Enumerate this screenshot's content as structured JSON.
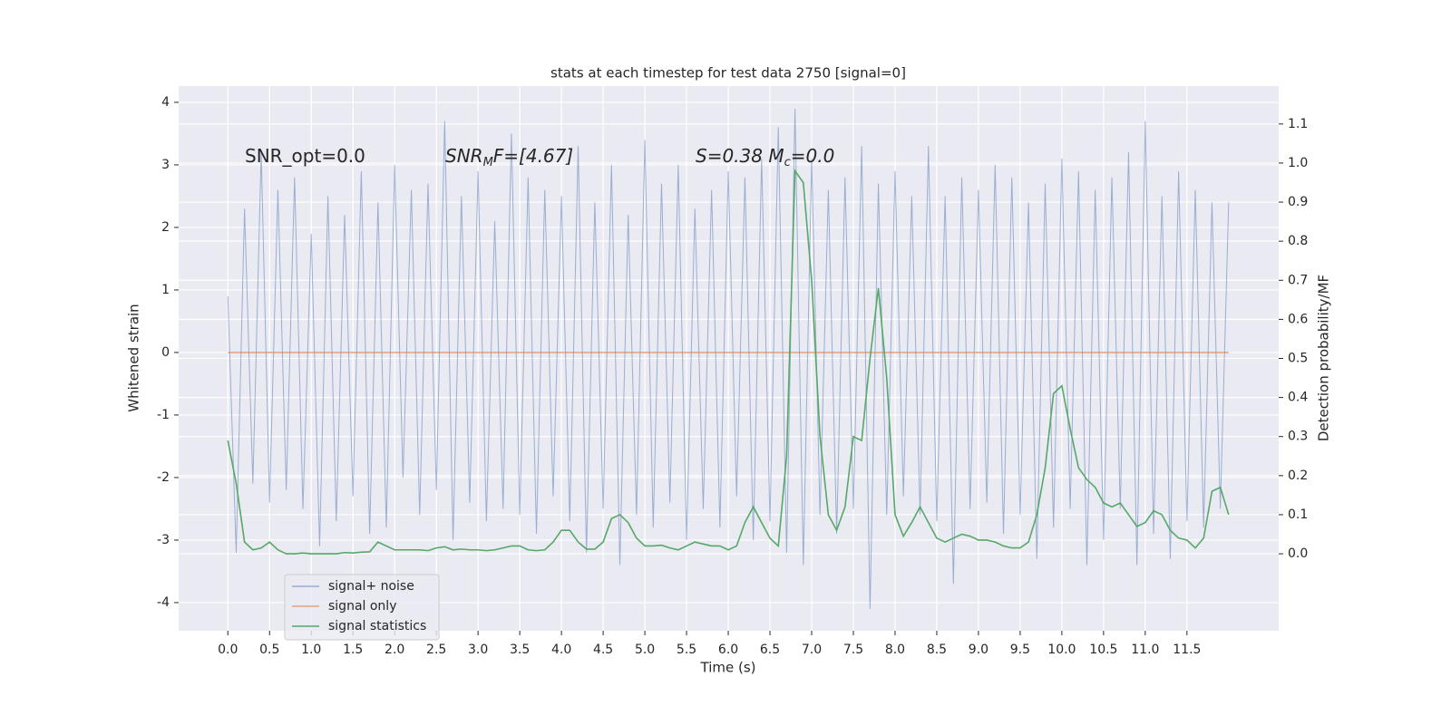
{
  "chart_data": {
    "type": "line",
    "title": "stats at each timestep for test data 2750 [signal=0]",
    "x_label": "Time (s)",
    "y_label": "Whitened strain",
    "y2_label": "Detection probability/MF",
    "x": [
      0,
      0.1,
      0.2,
      0.3,
      0.4,
      0.5,
      0.6,
      0.7,
      0.8,
      0.9,
      1,
      1.1,
      1.2,
      1.3,
      1.4,
      1.5,
      1.6,
      1.7,
      1.8,
      1.9,
      2,
      2.1,
      2.2,
      2.3,
      2.4,
      2.5,
      2.6,
      2.7,
      2.8,
      2.9,
      3,
      3.1,
      3.2,
      3.3,
      3.4,
      3.5,
      3.6,
      3.7,
      3.8,
      3.9,
      4,
      4.1,
      4.2,
      4.3,
      4.4,
      4.5,
      4.6,
      4.7,
      4.8,
      4.9,
      5,
      5.1,
      5.2,
      5.3,
      5.4,
      5.5,
      5.6,
      5.7,
      5.8,
      5.9,
      6,
      6.1,
      6.2,
      6.3,
      6.4,
      6.5,
      6.6,
      6.7,
      6.8,
      6.9,
      7,
      7.1,
      7.2,
      7.3,
      7.4,
      7.5,
      7.6,
      7.7,
      7.8,
      7.9,
      8,
      8.1,
      8.2,
      8.3,
      8.4,
      8.5,
      8.6,
      8.7,
      8.8,
      8.9,
      9,
      9.1,
      9.2,
      9.3,
      9.4,
      9.5,
      9.6,
      9.7,
      9.8,
      9.9,
      10,
      10.1,
      10.2,
      10.3,
      10.4,
      10.5,
      10.6,
      10.7,
      10.8,
      10.9,
      11,
      11.1,
      11.2,
      11.3,
      11.4,
      11.5,
      11.6,
      11.7,
      11.8,
      11.9,
      12
    ],
    "series": [
      {
        "name": "signal+ noise",
        "color": "#4c72b0",
        "opacity": 0.5,
        "values": [
          0.9,
          -3.2,
          2.3,
          -2.1,
          3.2,
          -2.4,
          2.6,
          -2.2,
          2.8,
          -2.5,
          1.9,
          -3.1,
          2.5,
          -2.7,
          2.2,
          -2.3,
          2.9,
          -2.9,
          2.4,
          -2.8,
          3.0,
          -2.0,
          2.6,
          -2.6,
          2.7,
          -2.2,
          3.7,
          -3.0,
          2.5,
          -2.4,
          2.9,
          -2.7,
          2.1,
          -2.5,
          3.5,
          -2.6,
          2.8,
          -2.9,
          2.6,
          -2.3,
          2.5,
          -2.7,
          3.3,
          -3.2,
          2.4,
          -2.5,
          3.0,
          -3.4,
          2.2,
          -2.6,
          3.4,
          -2.8,
          2.7,
          -2.4,
          3.0,
          -3.0,
          2.3,
          -2.5,
          2.6,
          -2.8,
          2.9,
          -2.3,
          2.8,
          -3.0,
          3.1,
          -2.7,
          3.6,
          -3.2,
          3.9,
          -3.4,
          3.1,
          -2.6,
          2.6,
          -2.9,
          2.8,
          -2.5,
          3.3,
          -4.1,
          2.7,
          -2.6,
          2.9,
          -2.3,
          2.5,
          -2.6,
          3.3,
          -2.7,
          2.5,
          -3.7,
          2.8,
          -2.5,
          2.6,
          -2.4,
          3.0,
          -2.9,
          2.8,
          -2.6,
          2.4,
          -3.3,
          2.7,
          -2.8,
          3.1,
          -2.5,
          2.9,
          -3.4,
          2.6,
          -3.0,
          2.8,
          -2.5,
          3.2,
          -3.4,
          3.7,
          -2.9,
          2.5,
          -3.3,
          2.9,
          -2.7,
          2.6,
          -2.8,
          2.4,
          -2.5,
          2.4
        ]
      },
      {
        "name": "signal only",
        "color": "#dd8452",
        "opacity": 0.7,
        "values": [
          0,
          0,
          0,
          0,
          0,
          0,
          0,
          0,
          0,
          0,
          0,
          0,
          0,
          0,
          0,
          0,
          0,
          0,
          0,
          0,
          0,
          0,
          0,
          0,
          0,
          0,
          0,
          0,
          0,
          0,
          0,
          0,
          0,
          0,
          0,
          0,
          0,
          0,
          0,
          0,
          0,
          0,
          0,
          0,
          0,
          0,
          0,
          0,
          0,
          0,
          0,
          0,
          0,
          0,
          0,
          0,
          0,
          0,
          0,
          0,
          0,
          0,
          0,
          0,
          0,
          0,
          0,
          0,
          0,
          0,
          0,
          0,
          0,
          0,
          0,
          0,
          0,
          0,
          0,
          0,
          0,
          0,
          0,
          0,
          0,
          0,
          0,
          0,
          0,
          0,
          0,
          0,
          0,
          0,
          0,
          0,
          0,
          0,
          0,
          0,
          0,
          0,
          0,
          0,
          0,
          0,
          0,
          0,
          0,
          0,
          0,
          0,
          0,
          0,
          0,
          0,
          0,
          0,
          0,
          0,
          0
        ]
      },
      {
        "name": "signal statistics",
        "color": "#55a868",
        "opacity": 1,
        "axis": "y2",
        "values": [
          0.29,
          0.18,
          0.03,
          0.01,
          0.015,
          0.03,
          0.01,
          0.0,
          0.0,
          0.002,
          0.0,
          0.0,
          0.0,
          0.0,
          0.003,
          0.002,
          0.004,
          0.005,
          0.03,
          0.02,
          0.01,
          0.01,
          0.01,
          0.01,
          0.008,
          0.015,
          0.018,
          0.01,
          0.012,
          0.01,
          0.01,
          0.008,
          0.01,
          0.015,
          0.02,
          0.02,
          0.01,
          0.008,
          0.01,
          0.03,
          0.06,
          0.06,
          0.03,
          0.012,
          0.012,
          0.03,
          0.09,
          0.1,
          0.08,
          0.04,
          0.02,
          0.02,
          0.022,
          0.015,
          0.01,
          0.02,
          0.03,
          0.025,
          0.02,
          0.02,
          0.01,
          0.02,
          0.08,
          0.12,
          0.08,
          0.04,
          0.02,
          0.25,
          0.98,
          0.95,
          0.7,
          0.3,
          0.1,
          0.06,
          0.12,
          0.3,
          0.29,
          0.5,
          0.68,
          0.45,
          0.1,
          0.045,
          0.08,
          0.12,
          0.08,
          0.04,
          0.03,
          0.04,
          0.05,
          0.045,
          0.035,
          0.035,
          0.03,
          0.02,
          0.015,
          0.015,
          0.03,
          0.1,
          0.22,
          0.41,
          0.43,
          0.32,
          0.22,
          0.19,
          0.17,
          0.13,
          0.12,
          0.13,
          0.1,
          0.07,
          0.08,
          0.11,
          0.1,
          0.06,
          0.04,
          0.035,
          0.015,
          0.04,
          0.16,
          0.17,
          0.1
        ]
      }
    ],
    "xlim": [
      -0.59,
      12.6
    ],
    "ylim": [
      -4.45,
      4.26
    ],
    "y2lim": [
      -0.197,
      1.197
    ],
    "xticks": [
      {
        "value": 0,
        "label": "0.0"
      },
      0.5,
      {
        "value": 1,
        "label": "1.0"
      },
      1.5,
      {
        "value": 2,
        "label": "2.0"
      },
      2.5,
      {
        "value": 3,
        "label": "3.0"
      },
      3.5,
      {
        "value": 4,
        "label": "4.0"
      },
      4.5,
      {
        "value": 5,
        "label": "5.0"
      },
      5.5,
      {
        "value": 6,
        "label": "6.0"
      },
      6.5,
      {
        "value": 7,
        "label": "7.0"
      },
      7.5,
      {
        "value": 8,
        "label": "8.0"
      },
      8.5,
      {
        "value": 9,
        "label": "9.0"
      },
      9.5,
      {
        "value": 10,
        "label": "10.0"
      },
      10.5,
      {
        "value": 11,
        "label": "11.0"
      },
      11.5
    ],
    "yticks": [
      -4,
      -3,
      -2,
      -1,
      0,
      1,
      2,
      3,
      4
    ],
    "y2ticks": [
      {
        "value": 0,
        "label": "0.0"
      },
      0.1,
      0.2,
      0.3,
      0.4,
      0.5,
      0.6,
      0.7,
      0.8,
      0.9,
      {
        "value": 1,
        "label": "1.0"
      },
      1.1
    ],
    "grid": true,
    "annotations": [
      {
        "parts": [
          "SNR_opt=0.0"
        ],
        "math": false
      },
      {
        "parts": [
          "SNR",
          "M",
          "F=[4.67]"
        ],
        "math": true
      },
      {
        "parts": [
          "S=0.38   M",
          "c",
          "=0.0"
        ],
        "math": true
      }
    ],
    "legend": "lower left"
  }
}
